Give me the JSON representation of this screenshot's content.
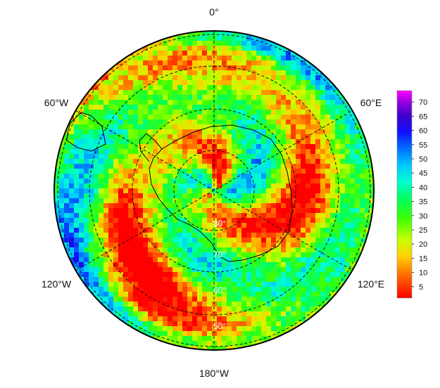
{
  "map": {
    "projection": "south-polar-stereographic",
    "longitude_labels": {
      "top": "0°",
      "upper_left": "60°W",
      "upper_right": "60°E",
      "lower_left": "120°W",
      "lower_right": "120°E",
      "bottom": "180°W"
    },
    "latitude_labels": [
      "80°",
      "70°",
      "60°",
      "50°"
    ],
    "grid": true,
    "coastlines": true
  },
  "colorbar": {
    "ticks": [
      "5",
      "10",
      "15",
      "20",
      "25",
      "30",
      "35",
      "40",
      "45",
      "50",
      "55",
      "60",
      "65",
      "70"
    ],
    "tick_values": [
      5,
      10,
      15,
      20,
      25,
      30,
      35,
      40,
      45,
      50,
      55,
      60,
      65,
      70
    ],
    "min": 1,
    "max": 74,
    "colors": [
      "#ff0000",
      "#ff7f00",
      "#ffff00",
      "#7fff00",
      "#00ff00",
      "#00ffbf",
      "#00bfff",
      "#0040ff",
      "#4000d0",
      "#ff00ff"
    ]
  }
}
